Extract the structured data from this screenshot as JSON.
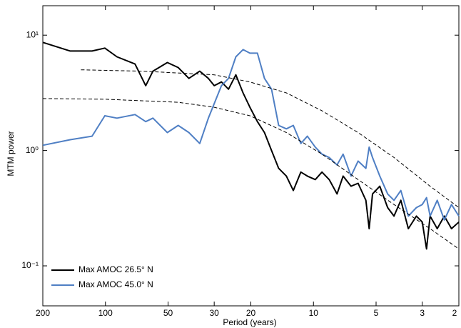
{
  "chart_data": {
    "type": "line",
    "xlabel": "Period (years)",
    "ylabel": "MTM power",
    "xscale": "log",
    "yscale": "log",
    "xlim": [
      200,
      2
    ],
    "ylim": [
      0.045,
      18
    ],
    "xticks": [
      200,
      100,
      50,
      30,
      20,
      10,
      5,
      3,
      2
    ],
    "yticks": [
      {
        "value": 0.1,
        "label": "10⁻¹"
      },
      {
        "value": 1,
        "label": "10⁰"
      },
      {
        "value": 10,
        "label": "10¹"
      }
    ],
    "legend": "lower left",
    "x": [
      200,
      147.7,
      116,
      100.7,
      88.0,
      72.1,
      64.0,
      59.1,
      50.4,
      44.7,
      39.7,
      35.2,
      32.0,
      30.0,
      27.7,
      25.6,
      23.6,
      21.8,
      20.2,
      18.6,
      17.2,
      15.9,
      14.7,
      13.5,
      12.5,
      11.5,
      10.7,
      9.8,
      9.1,
      8.4,
      7.7,
      7.2,
      6.6,
      6.1,
      5.6,
      5.4,
      5.2,
      4.8,
      4.4,
      4.1,
      3.8,
      3.5,
      3.2,
      3.0,
      2.86,
      2.75,
      2.54,
      2.35,
      2.17,
      2.0
    ],
    "series": [
      {
        "name": "Max AMOC 26.5° N",
        "color": "#000000",
        "values": [
          8.66,
          7.29,
          7.29,
          7.72,
          6.49,
          5.62,
          3.65,
          4.87,
          5.79,
          5.24,
          4.22,
          4.87,
          4.22,
          3.65,
          3.93,
          3.4,
          4.53,
          3.16,
          2.37,
          1.78,
          1.43,
          1.0,
          0.7,
          0.6,
          0.45,
          0.65,
          0.6,
          0.56,
          0.65,
          0.56,
          0.42,
          0.6,
          0.49,
          0.52,
          0.37,
          0.21,
          0.42,
          0.49,
          0.32,
          0.27,
          0.37,
          0.21,
          0.27,
          0.24,
          0.14,
          0.27,
          0.21,
          0.27,
          0.21,
          0.24
        ]
      },
      {
        "name": "Max AMOC 45.0° N",
        "color": "#4f7fc4",
        "values": [
          1.11,
          1.24,
          1.33,
          2.0,
          1.91,
          2.05,
          1.78,
          1.91,
          1.43,
          1.65,
          1.43,
          1.15,
          1.91,
          2.55,
          3.65,
          4.22,
          6.49,
          7.5,
          6.98,
          6.98,
          4.22,
          3.4,
          1.65,
          1.54,
          1.65,
          1.15,
          1.33,
          1.07,
          0.93,
          0.87,
          0.75,
          0.93,
          0.6,
          0.81,
          0.7,
          1.07,
          0.87,
          0.6,
          0.42,
          0.37,
          0.45,
          0.27,
          0.32,
          0.34,
          0.39,
          0.27,
          0.37,
          0.25,
          0.34,
          0.27
        ]
      },
      {
        "color": "#000000",
        "dash": true,
        "x": [
          131.2,
          66.6,
          30.0,
          20.2,
          13.5,
          9.1,
          6.1,
          4.1,
          2.75,
          2.0
        ],
        "values": [
          5.01,
          4.87,
          4.53,
          3.93,
          3.16,
          2.21,
          1.43,
          0.87,
          0.49,
          0.32
        ]
      },
      {
        "color": "#000000",
        "dash": true,
        "x": [
          200,
          99.2,
          44.7,
          30.0,
          20.2,
          13.5,
          9.1,
          6.1,
          4.1,
          2.75,
          2.0
        ],
        "values": [
          2.82,
          2.78,
          2.62,
          2.37,
          2.0,
          1.43,
          0.93,
          0.56,
          0.34,
          0.21,
          0.14
        ]
      }
    ]
  }
}
